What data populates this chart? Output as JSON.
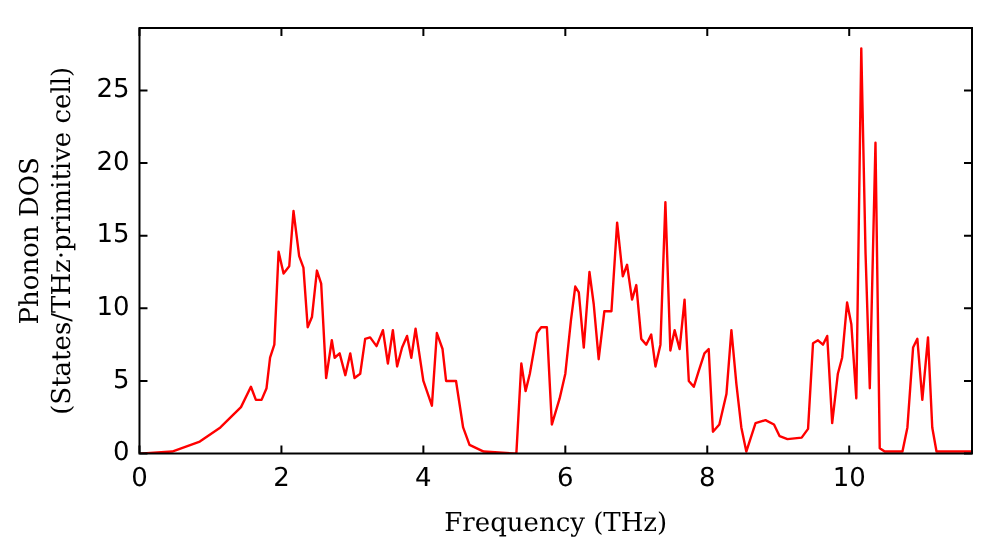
{
  "chart_data": {
    "type": "line",
    "xlabel": "Frequency (THz)",
    "ylabel": "Phonon DOS\n(States/THz·primitive cell)",
    "xlim": [
      0,
      11.73
    ],
    "ylim": [
      0,
      29.3
    ],
    "xticks": [
      0,
      2,
      4,
      6,
      8,
      10
    ],
    "yticks": [
      0,
      5,
      10,
      15,
      20,
      25
    ],
    "grid": false,
    "legend": false,
    "marker": "none",
    "line_style": "solid",
    "series": [
      {
        "color": "#ff0000",
        "x": [
          0,
          0.46,
          0.85,
          1.14,
          1.43,
          1.57,
          1.64,
          1.72,
          1.79,
          1.84,
          1.9,
          1.96,
          2.03,
          2.11,
          2.17,
          2.25,
          2.31,
          2.37,
          2.43,
          2.5,
          2.56,
          2.63,
          2.71,
          2.75,
          2.82,
          2.9,
          2.97,
          3.03,
          3.11,
          3.18,
          3.25,
          3.34,
          3.43,
          3.5,
          3.57,
          3.63,
          3.7,
          3.77,
          3.83,
          3.89,
          4.0,
          4.12,
          4.19,
          4.27,
          4.32,
          4.46,
          4.56,
          4.65,
          4.85,
          5.31,
          5.38,
          5.44,
          5.5,
          5.6,
          5.66,
          5.74,
          5.81,
          5.92,
          6.0,
          6.08,
          6.14,
          6.19,
          6.26,
          6.34,
          6.4,
          6.47,
          6.55,
          6.65,
          6.73,
          6.81,
          6.87,
          6.94,
          7.0,
          7.07,
          7.14,
          7.21,
          7.27,
          7.34,
          7.41,
          7.48,
          7.54,
          7.61,
          7.68,
          7.74,
          7.81,
          7.88,
          7.96,
          8.02,
          8.08,
          8.17,
          8.27,
          8.34,
          8.41,
          8.48,
          8.55,
          8.68,
          8.82,
          8.94,
          9.02,
          9.13,
          9.33,
          9.42,
          9.49,
          9.56,
          9.63,
          9.69,
          9.76,
          9.84,
          9.9,
          9.97,
          10.03,
          10.1,
          10.17,
          10.23,
          10.29,
          10.37,
          10.43,
          10.5,
          10.75,
          10.82,
          10.9,
          10.96,
          11.03,
          11.11,
          11.17,
          11.23,
          11.73
        ],
        "values": [
          0,
          0.14,
          0.83,
          1.8,
          3.2,
          4.6,
          3.7,
          3.7,
          4.5,
          6.6,
          7.5,
          13.9,
          12.4,
          12.9,
          16.7,
          13.6,
          12.8,
          8.7,
          9.4,
          12.6,
          11.7,
          5.2,
          7.8,
          6.6,
          6.9,
          5.4,
          6.9,
          5.2,
          5.5,
          7.9,
          8.0,
          7.4,
          8.5,
          6.2,
          8.5,
          6.0,
          7.3,
          8.1,
          6.6,
          8.6,
          5.0,
          3.3,
          8.3,
          7.2,
          5.0,
          5.0,
          1.8,
          0.6,
          0.14,
          0,
          6.2,
          4.3,
          5.5,
          8.3,
          8.7,
          8.7,
          2.0,
          3.8,
          5.5,
          9.2,
          11.5,
          11.1,
          7.3,
          12.5,
          10.3,
          6.5,
          9.8,
          9.8,
          15.9,
          12.2,
          13.0,
          10.6,
          11.6,
          7.9,
          7.5,
          8.2,
          6.0,
          7.5,
          17.3,
          7.1,
          8.5,
          7.2,
          10.6,
          5.0,
          4.6,
          5.7,
          6.9,
          7.2,
          1.5,
          2.0,
          4.1,
          8.5,
          4.8,
          1.8,
          0.14,
          2.1,
          2.3,
          2.0,
          1.2,
          1.0,
          1.1,
          1.7,
          7.6,
          7.8,
          7.5,
          8.1,
          2.1,
          5.5,
          6.6,
          10.4,
          8.9,
          3.8,
          27.9,
          13.8,
          4.5,
          21.4,
          0.37,
          0.14,
          0.14,
          1.8,
          7.3,
          7.9,
          3.7,
          8.0,
          1.8,
          0.14,
          0.14
        ]
      }
    ]
  }
}
